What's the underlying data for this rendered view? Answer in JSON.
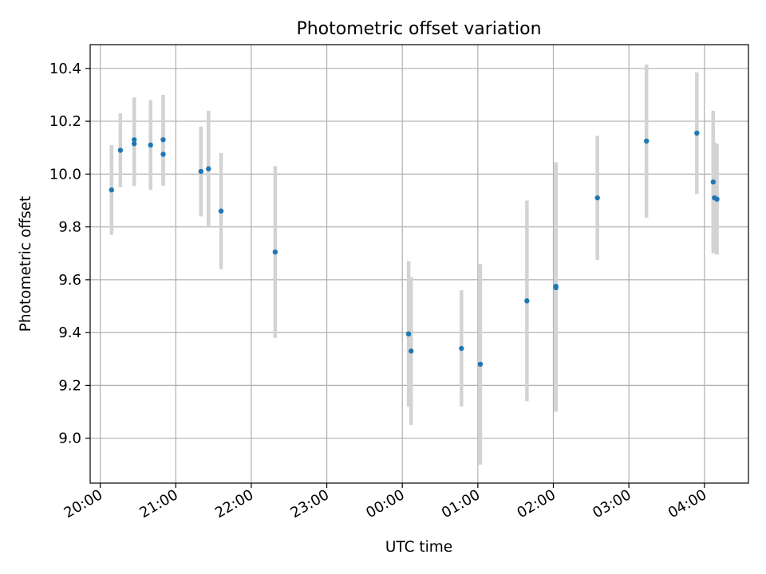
{
  "chart_data": {
    "type": "scatter",
    "title": "Photometric offset variation",
    "xlabel": "UTC time",
    "ylabel": "Photometric offset",
    "grid": true,
    "x_is_time": true,
    "xlim": [
      "19:52",
      "04:35"
    ],
    "ylim": [
      8.83,
      10.49
    ],
    "x_ticks": [
      "20:00",
      "21:00",
      "22:00",
      "23:00",
      "00:00",
      "01:00",
      "02:00",
      "03:00",
      "04:00"
    ],
    "y_ticks": [
      "9.0",
      "9.2",
      "9.4",
      "9.6",
      "9.8",
      "10.0",
      "10.2",
      "10.4"
    ],
    "point_color": "#1f77b4",
    "errorbar_color": "#d3d3d3",
    "series": [
      {
        "points": [
          {
            "x": "20:09",
            "y": 9.94,
            "err": 0.17
          },
          {
            "x": "20:16",
            "y": 10.09,
            "err": 0.14
          },
          {
            "x": "20:27",
            "y": 10.13,
            "err": 0.16
          },
          {
            "x": "20:27",
            "y": 10.115,
            "err": 0.16
          },
          {
            "x": "20:40",
            "y": 10.11,
            "err": 0.17
          },
          {
            "x": "20:50",
            "y": 10.13,
            "err": 0.17
          },
          {
            "x": "20:50",
            "y": 10.075,
            "err": 0.12
          },
          {
            "x": "21:20",
            "y": 10.01,
            "err": 0.17
          },
          {
            "x": "21:26",
            "y": 10.02,
            "err": 0.22
          },
          {
            "x": "21:36",
            "y": 9.86,
            "err": 0.22
          },
          {
            "x": "22:19",
            "y": 9.705,
            "err": 0.325
          },
          {
            "x": "00:05",
            "y": 9.395,
            "err": 0.275
          },
          {
            "x": "00:07",
            "y": 9.33,
            "err": 0.28
          },
          {
            "x": "00:47",
            "y": 9.34,
            "err": 0.22
          },
          {
            "x": "01:02",
            "y": 9.28,
            "err": 0.38
          },
          {
            "x": "01:39",
            "y": 9.52,
            "err": 0.38
          },
          {
            "x": "02:02",
            "y": 9.575,
            "err": 0.47
          },
          {
            "x": "02:02",
            "y": 9.57,
            "err": 0.47
          },
          {
            "x": "02:35",
            "y": 9.91,
            "err": 0.235
          },
          {
            "x": "03:14",
            "y": 10.125,
            "err": 0.29
          },
          {
            "x": "03:54",
            "y": 10.155,
            "err": 0.23
          },
          {
            "x": "04:07",
            "y": 9.97,
            "err": 0.27
          },
          {
            "x": "04:08",
            "y": 9.91,
            "err": 0.21
          },
          {
            "x": "04:10",
            "y": 9.905,
            "err": 0.21
          }
        ]
      }
    ]
  }
}
